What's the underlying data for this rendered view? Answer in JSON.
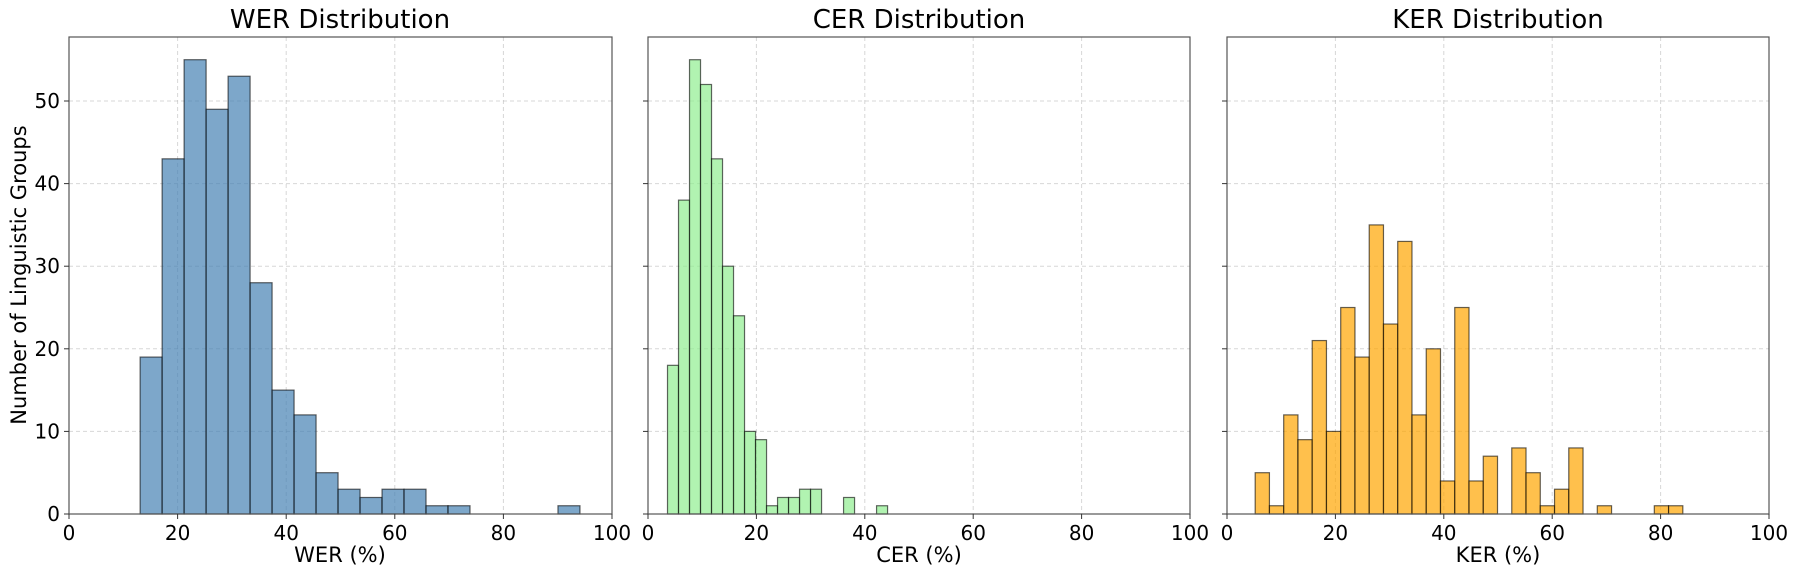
{
  "chart_data": [
    {
      "type": "bar",
      "subtype": "histogram",
      "title": "WER Distribution",
      "xlabel": "WER (%)",
      "ylabel": "Number of Linguistic Groups",
      "xlim": [
        0,
        100
      ],
      "ylim": [
        0,
        57.75
      ],
      "xticks": [
        0,
        20,
        40,
        60,
        80,
        100
      ],
      "yticks": [
        0,
        10,
        20,
        30,
        40,
        50
      ],
      "grid": true,
      "color": "#4682B4",
      "bin_start": 13.1,
      "bin_width": 4.05,
      "values": [
        19,
        43,
        55,
        49,
        53,
        28,
        15,
        12,
        5,
        3,
        2,
        3,
        3,
        1,
        1,
        0,
        0,
        0,
        0,
        1
      ]
    },
    {
      "type": "bar",
      "subtype": "histogram",
      "title": "CER Distribution",
      "xlabel": "CER (%)",
      "xlim": [
        0,
        100
      ],
      "ylim": [
        0,
        57.75
      ],
      "xticks": [
        0,
        20,
        40,
        60,
        80,
        100
      ],
      "yticks": [
        0,
        10,
        20,
        30,
        40,
        50
      ],
      "grid": true,
      "color": "#90EE90",
      "bin_start": 3.6,
      "bin_width": 2.03,
      "values": [
        18,
        38,
        55,
        52,
        43,
        30,
        24,
        10,
        9,
        1,
        2,
        2,
        3,
        3,
        0,
        0,
        2,
        0,
        0,
        1
      ]
    },
    {
      "type": "bar",
      "subtype": "histogram",
      "title": "KER Distribution",
      "xlabel": "KER (%)",
      "xlim": [
        0,
        100
      ],
      "ylim": [
        0,
        57.75
      ],
      "xticks": [
        0,
        20,
        40,
        60,
        80,
        100
      ],
      "yticks": [
        0,
        10,
        20,
        30,
        40,
        50
      ],
      "grid": true,
      "color": "#FFA500",
      "bin_start": 5.2,
      "bin_width": 2.63,
      "values": [
        5,
        1,
        12,
        9,
        21,
        10,
        25,
        19,
        35,
        23,
        33,
        12,
        20,
        4,
        25,
        4,
        7,
        0,
        8,
        5,
        1,
        3,
        8,
        0,
        1,
        0,
        0,
        0,
        1,
        1
      ]
    }
  ]
}
